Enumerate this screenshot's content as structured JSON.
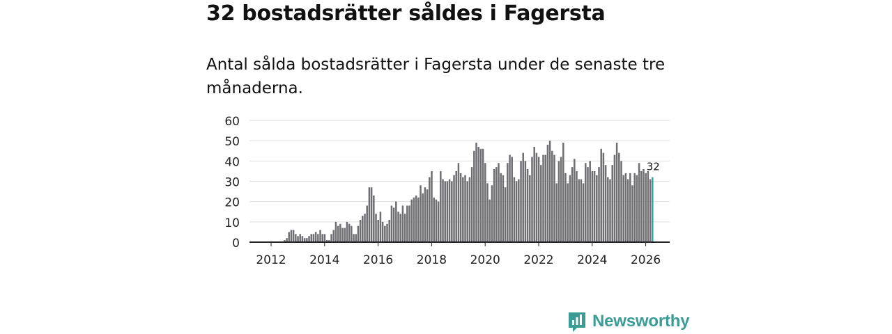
{
  "header": {
    "title": "32 bostadsrätter såldes i Fagersta",
    "subtitle": "Antal sålda bostadsrätter i Fagersta under de senaste tre månaderna."
  },
  "brand": {
    "name": "Newsworthy",
    "icon": "bar-chart-logo-icon",
    "color": "#3a9c95"
  },
  "colors": {
    "bar": "#6f6f73",
    "highlight": "#2aa8a6",
    "grid": "#dddddd",
    "axis": "#222222"
  },
  "chart_data": {
    "type": "bar",
    "title": "32 bostadsrätter såldes i Fagersta",
    "subtitle": "Antal sålda bostadsrätter i Fagersta under de senaste tre månaderna.",
    "xlabel": "",
    "ylabel": "",
    "ylim": [
      0,
      60
    ],
    "yticks": [
      0,
      10,
      20,
      30,
      40,
      50,
      60
    ],
    "xticks": [
      2012,
      2014,
      2016,
      2018,
      2020,
      2022,
      2024,
      2026
    ],
    "grid": true,
    "start_year": 2011.67,
    "step_years": 0.08333,
    "values": [
      0,
      0,
      0,
      0,
      0,
      0,
      0,
      0,
      0,
      0,
      1,
      2,
      5,
      6,
      6,
      4,
      3,
      4,
      3,
      2,
      2,
      3,
      4,
      4,
      5,
      4,
      6,
      4,
      4,
      1,
      1,
      4,
      6,
      10,
      8,
      9,
      7,
      7,
      10,
      9,
      8,
      4,
      4,
      8,
      11,
      13,
      14,
      18,
      27,
      27,
      23,
      14,
      11,
      15,
      10,
      8,
      9,
      11,
      18,
      17,
      20,
      15,
      14,
      18,
      14,
      18,
      18,
      21,
      22,
      23,
      22,
      28,
      24,
      27,
      26,
      32,
      35,
      22,
      21,
      20,
      35,
      31,
      30,
      30,
      31,
      30,
      33,
      35,
      39,
      34,
      32,
      33,
      30,
      32,
      37,
      45,
      49,
      47,
      46,
      46,
      39,
      29,
      21,
      28,
      36,
      37,
      39,
      34,
      33,
      27,
      39,
      43,
      42,
      32,
      30,
      31,
      40,
      44,
      40,
      36,
      33,
      42,
      47,
      44,
      42,
      38,
      43,
      43,
      48,
      50,
      45,
      43,
      29,
      40,
      42,
      49,
      34,
      29,
      33,
      37,
      41,
      35,
      31,
      31,
      29,
      39,
      37,
      40,
      35,
      35,
      33,
      37,
      46,
      44,
      38,
      32,
      31,
      38,
      43,
      49,
      44,
      40,
      33,
      34,
      31,
      34,
      28,
      34,
      33,
      39,
      35,
      36,
      34,
      35,
      31,
      32
    ],
    "highlight_value": 32,
    "highlight_label": "32"
  }
}
